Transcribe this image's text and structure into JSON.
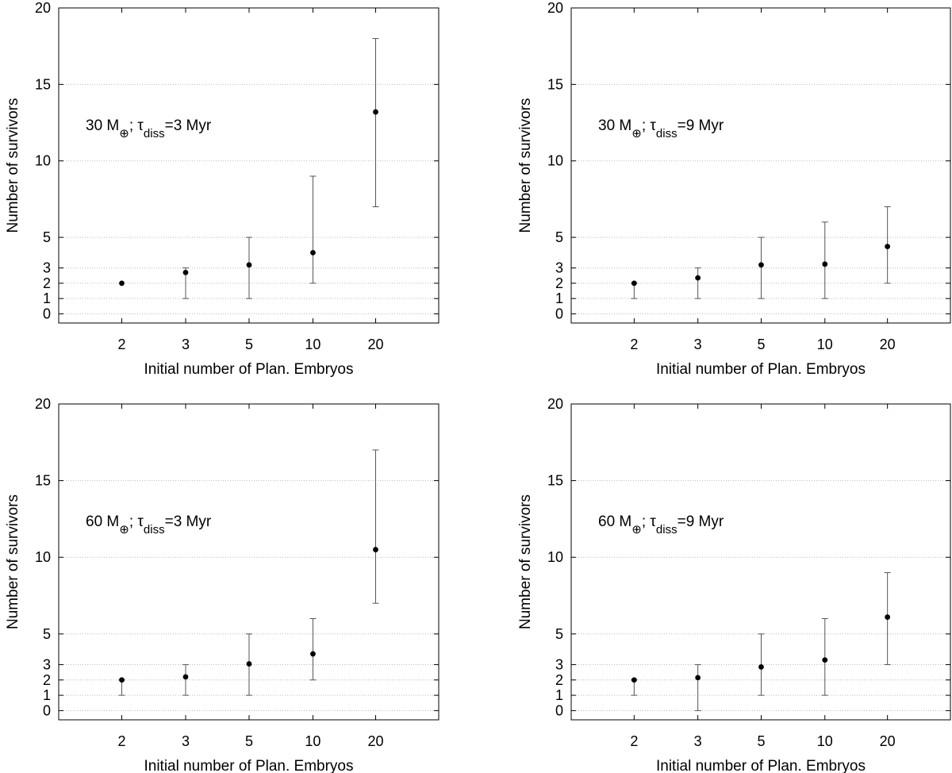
{
  "chart_data": [
    {
      "type": "scatter",
      "annotation": {
        "mass": "30 M",
        "mass_sub": "⊕",
        "tau": "τ",
        "tau_sub": "diss",
        "rest": "=3 Myr"
      },
      "xlabel": "Initial number of Plan. Embryos",
      "ylabel": "Number of survivors",
      "categories": [
        "2",
        "3",
        "5",
        "10",
        "20"
      ],
      "yticks": [
        "0",
        "1",
        "2",
        "3",
        "5",
        "10",
        "15",
        "20"
      ],
      "ylim": [
        -0.6,
        20
      ],
      "grid": "horizontal dotted",
      "series": [
        {
          "values": [
            2.0,
            2.7,
            3.2,
            4.0,
            13.2
          ],
          "err_low": [
            2,
            1,
            1,
            2,
            7
          ],
          "err_high": [
            2,
            3,
            5,
            9,
            18
          ]
        }
      ]
    },
    {
      "type": "scatter",
      "annotation": {
        "mass": "30 M",
        "mass_sub": "⊕",
        "tau": "τ",
        "tau_sub": "diss",
        "rest": "=9 Myr"
      },
      "xlabel": "Initial number of Plan. Embryos",
      "ylabel": "Number of survivors",
      "categories": [
        "2",
        "3",
        "5",
        "10",
        "20"
      ],
      "yticks": [
        "0",
        "1",
        "2",
        "3",
        "5",
        "10",
        "15",
        "20"
      ],
      "ylim": [
        -0.6,
        20
      ],
      "grid": "horizontal dotted",
      "series": [
        {
          "values": [
            2.0,
            2.35,
            3.2,
            3.25,
            4.4
          ],
          "err_low": [
            1,
            1,
            1,
            1,
            2
          ],
          "err_high": [
            2,
            3,
            5,
            6,
            7
          ]
        }
      ]
    },
    {
      "type": "scatter",
      "annotation": {
        "mass": "60 M",
        "mass_sub": "⊕",
        "tau": "τ",
        "tau_sub": "diss",
        "rest": "=3 Myr"
      },
      "xlabel": "Initial number of Plan. Embryos",
      "ylabel": "Number of survivors",
      "categories": [
        "2",
        "3",
        "5",
        "10",
        "20"
      ],
      "yticks": [
        "0",
        "1",
        "2",
        "3",
        "5",
        "10",
        "15",
        "20"
      ],
      "ylim": [
        -0.6,
        20
      ],
      "grid": "horizontal dotted",
      "series": [
        {
          "values": [
            2.0,
            2.2,
            3.05,
            3.7,
            10.5
          ],
          "err_low": [
            1,
            1,
            1,
            2,
            7
          ],
          "err_high": [
            2,
            3,
            5,
            6,
            17
          ]
        }
      ]
    },
    {
      "type": "scatter",
      "annotation": {
        "mass": "60 M",
        "mass_sub": "⊕",
        "tau": "τ",
        "tau_sub": "diss",
        "rest": "=9 Myr"
      },
      "xlabel": "Initial number of Plan. Embryos",
      "ylabel": "Number of survivors",
      "categories": [
        "2",
        "3",
        "5",
        "10",
        "20"
      ],
      "yticks": [
        "0",
        "1",
        "2",
        "3",
        "5",
        "10",
        "15",
        "20"
      ],
      "ylim": [
        -0.6,
        20
      ],
      "grid": "horizontal dotted",
      "series": [
        {
          "values": [
            2.0,
            2.15,
            2.85,
            3.3,
            6.1
          ],
          "err_low": [
            1,
            0,
            1,
            1,
            3
          ],
          "err_high": [
            2,
            3,
            5,
            6,
            9
          ]
        }
      ]
    }
  ]
}
